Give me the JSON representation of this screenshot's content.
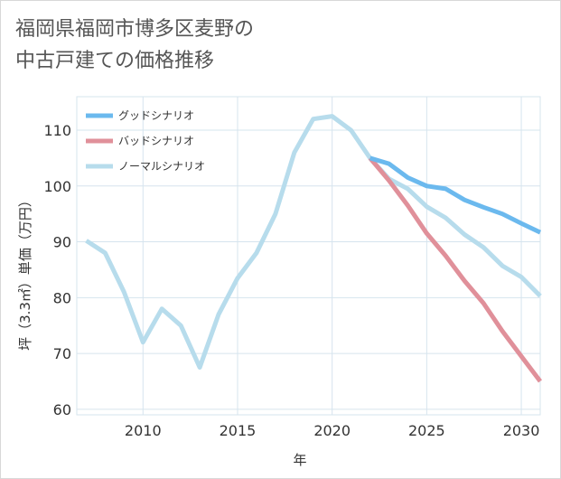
{
  "title_line1": "福岡県福岡市博多区麦野の",
  "title_line2": "中古戸建ての価格推移",
  "chart_data": {
    "type": "line",
    "xlabel": "年",
    "ylabel": "坪（3.3㎡）単価（万円）",
    "xlim": [
      2006.5,
      2031
    ],
    "ylim": [
      59,
      116
    ],
    "x_ticks": [
      2010,
      2015,
      2020,
      2025,
      2030
    ],
    "y_ticks": [
      60,
      70,
      80,
      90,
      100,
      110
    ],
    "grid": true,
    "legend_position": "top-left",
    "series": [
      {
        "name": "グッドシナリオ",
        "color": "#6bb9ee",
        "x": [
          2022,
          2023,
          2024,
          2025,
          2026,
          2027,
          2028,
          2029,
          2030,
          2031
        ],
        "y": [
          105,
          104,
          101.5,
          100,
          99.5,
          97.5,
          96.2,
          95,
          93.3,
          91.7
        ]
      },
      {
        "name": "バッドシナリオ",
        "color": "#e0909a",
        "x": [
          2022,
          2023,
          2024,
          2025,
          2026,
          2027,
          2028,
          2029,
          2030,
          2031
        ],
        "y": [
          105,
          101,
          96.5,
          91.5,
          87.5,
          83,
          79,
          74,
          69.5,
          65
        ]
      },
      {
        "name": "ノーマルシナリオ",
        "color": "#b7dcec",
        "x": [
          2007,
          2008,
          2009,
          2010,
          2011,
          2012,
          2013,
          2014,
          2015,
          2016,
          2017,
          2018,
          2019,
          2020,
          2021,
          2022,
          2023,
          2024,
          2025,
          2026,
          2027,
          2028,
          2029,
          2030,
          2031
        ],
        "y": [
          90.2,
          88,
          81,
          72,
          78,
          75,
          67.5,
          77,
          83.5,
          88,
          95,
          106,
          112,
          112.5,
          110,
          105,
          101.3,
          99.5,
          96.3,
          94.3,
          91.3,
          89,
          85.7,
          83.7,
          80.3
        ]
      }
    ]
  }
}
